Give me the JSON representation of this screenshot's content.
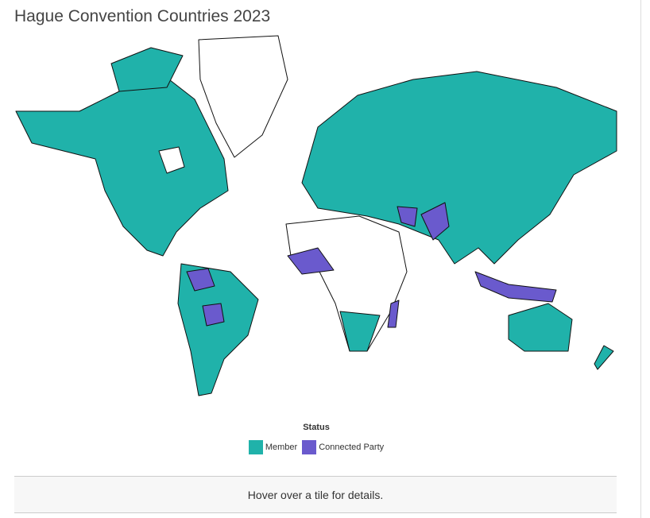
{
  "title": "Hague Convention Countries 2023",
  "legend": {
    "title": "Status",
    "items": [
      {
        "label": "Member",
        "color": "#20b2aa"
      },
      {
        "label": "Connected Party",
        "color": "#6a5acd"
      }
    ]
  },
  "footer": "Hover over a tile for details."
}
